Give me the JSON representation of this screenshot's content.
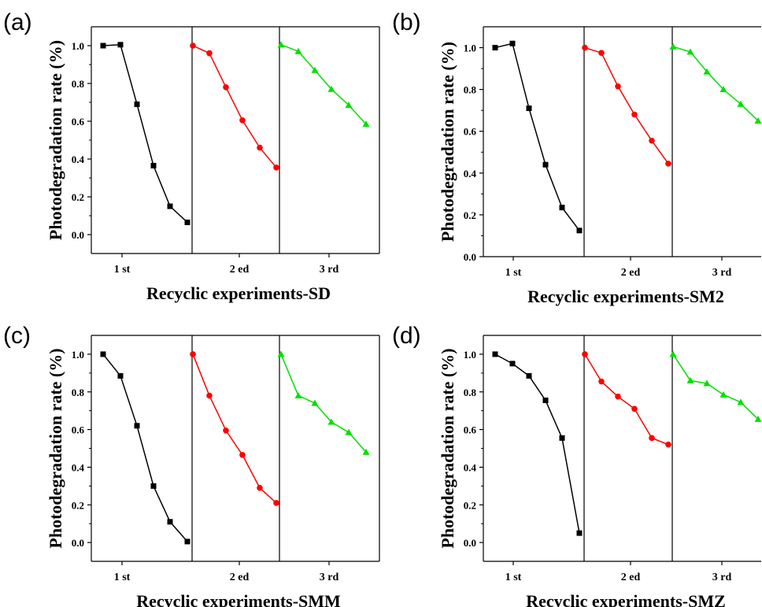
{
  "chart_data": [
    {
      "panel_letter": "(a)",
      "type": "line",
      "ylabel": "Photodegradation rate (%)",
      "xlabel": "Recyclic experiments-SD",
      "ylim": [
        -0.1,
        1.1
      ],
      "yticks": [
        "0.0",
        "0.2",
        "0.4",
        "0.6",
        "0.8",
        "1.0"
      ],
      "series": [
        {
          "label": "1 st",
          "color": "#000000",
          "marker": "square",
          "values": [
            1.0,
            1.005,
            0.69,
            0.365,
            0.15,
            0.065
          ]
        },
        {
          "label": "2 ed",
          "color": "#ff0000",
          "marker": "circle",
          "values": [
            1.0,
            0.96,
            0.78,
            0.605,
            0.46,
            0.355
          ]
        },
        {
          "label": "3 rd",
          "color": "#00e000",
          "marker": "triangle",
          "values": [
            1.005,
            0.97,
            0.87,
            0.77,
            0.685,
            0.585
          ]
        }
      ]
    },
    {
      "panel_letter": "(b)",
      "type": "line",
      "ylabel": "Photodegradation rate (%)",
      "xlabel": "Recyclic experiments-SM2",
      "ylim": [
        0.0,
        1.1
      ],
      "yticks": [
        "0.0",
        "0.2",
        "0.4",
        "0.6",
        "0.8",
        "1.0"
      ],
      "series": [
        {
          "label": "1 st",
          "color": "#000000",
          "marker": "square",
          "values": [
            1.0,
            1.02,
            0.71,
            0.44,
            0.235,
            0.125
          ]
        },
        {
          "label": "2 ed",
          "color": "#ff0000",
          "marker": "circle",
          "values": [
            1.0,
            0.975,
            0.815,
            0.68,
            0.555,
            0.445
          ]
        },
        {
          "label": "3 rd",
          "color": "#00e000",
          "marker": "triangle",
          "values": [
            1.005,
            0.98,
            0.885,
            0.8,
            0.73,
            0.65
          ]
        }
      ]
    },
    {
      "panel_letter": "(c)",
      "type": "line",
      "ylabel": "Photodegradation rate (%)",
      "xlabel": "Recyclic experiments-SMM",
      "ylim": [
        -0.1,
        1.1
      ],
      "yticks": [
        "0.0",
        "0.2",
        "0.4",
        "0.6",
        "0.8",
        "1.0"
      ],
      "series": [
        {
          "label": "1 st",
          "color": "#000000",
          "marker": "square",
          "values": [
            1.0,
            0.885,
            0.62,
            0.3,
            0.11,
            0.005
          ]
        },
        {
          "label": "2 ed",
          "color": "#ff0000",
          "marker": "circle",
          "values": [
            1.0,
            0.78,
            0.595,
            0.465,
            0.29,
            0.21
          ]
        },
        {
          "label": "3 rd",
          "color": "#00e000",
          "marker": "triangle",
          "values": [
            1.0,
            0.78,
            0.74,
            0.64,
            0.585,
            0.48
          ]
        }
      ]
    },
    {
      "panel_letter": "(d)",
      "type": "line",
      "ylabel": "Photodegradation rate (%)",
      "xlabel": "Recyclic experiments-SMZ",
      "ylim": [
        -0.1,
        1.1
      ],
      "yticks": [
        "0.0",
        "0.2",
        "0.4",
        "0.6",
        "0.8",
        "1.0"
      ],
      "series": [
        {
          "label": "1 st",
          "color": "#000000",
          "marker": "square",
          "values": [
            1.0,
            0.95,
            0.885,
            0.755,
            0.555,
            0.05
          ]
        },
        {
          "label": "2 ed",
          "color": "#ff0000",
          "marker": "circle",
          "values": [
            1.0,
            0.855,
            0.775,
            0.71,
            0.555,
            0.52
          ]
        },
        {
          "label": "3 rd",
          "color": "#00e000",
          "marker": "triangle",
          "values": [
            1.0,
            0.86,
            0.845,
            0.785,
            0.745,
            0.655
          ]
        }
      ]
    }
  ]
}
